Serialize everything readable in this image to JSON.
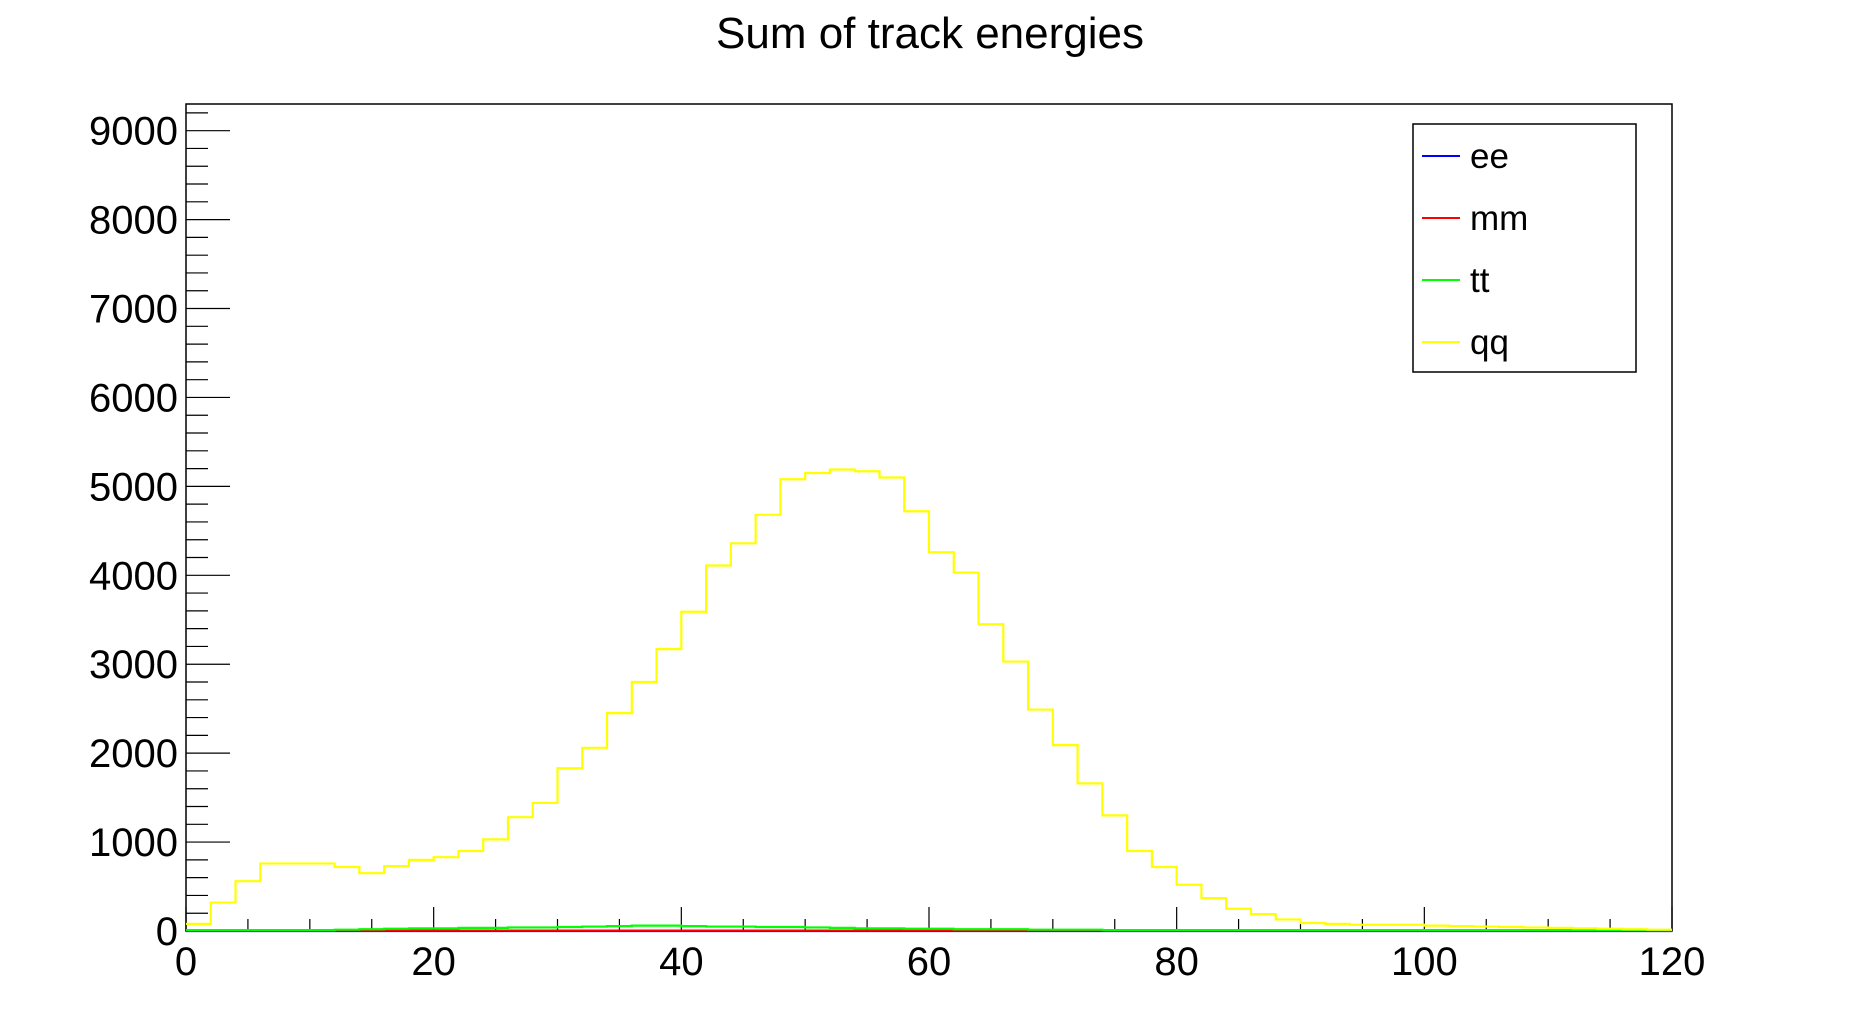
{
  "chart_data": {
    "type": "histogram",
    "title": "Sum of track energies",
    "xlabel": "",
    "ylabel": "",
    "xlim": [
      0,
      120
    ],
    "ylim": [
      0,
      9300
    ],
    "bin_width": 2,
    "x_ticks": [
      0,
      20,
      40,
      60,
      80,
      100,
      120
    ],
    "y_ticks": [
      0,
      1000,
      2000,
      3000,
      4000,
      5000,
      6000,
      7000,
      8000,
      9000
    ],
    "grid": false,
    "legend_position": "top-right",
    "series": [
      {
        "name": "ee",
        "color": "#0000ff",
        "values": [
          0,
          0,
          0,
          0,
          0,
          0,
          0,
          0,
          0,
          0,
          0,
          0,
          0,
          0,
          0,
          0,
          0,
          0,
          0,
          0,
          0,
          0,
          0,
          0,
          0,
          0,
          0,
          0,
          0,
          0,
          0,
          0,
          0,
          0,
          0,
          0,
          0,
          0,
          0,
          0,
          0,
          0,
          0,
          0,
          0,
          0,
          0,
          0,
          0,
          0,
          0,
          0,
          0,
          0,
          0,
          0,
          0,
          0,
          0,
          0
        ]
      },
      {
        "name": "mm",
        "color": "#ff0000",
        "values": [
          5,
          5,
          5,
          5,
          5,
          5,
          5,
          5,
          5,
          5,
          5,
          5,
          5,
          5,
          5,
          5,
          5,
          5,
          5,
          5,
          5,
          5,
          5,
          5,
          5,
          5,
          5,
          5,
          5,
          5,
          5,
          5,
          5,
          5,
          5,
          5,
          5,
          5,
          5,
          5,
          5,
          5,
          5,
          5,
          5,
          5,
          5,
          5,
          5,
          5,
          5,
          5,
          5,
          5,
          5,
          5,
          5,
          5,
          5,
          5
        ]
      },
      {
        "name": "tt",
        "color": "#00ff00",
        "values": [
          10,
          10,
          10,
          10,
          10,
          10,
          15,
          20,
          25,
          30,
          30,
          35,
          35,
          40,
          40,
          45,
          50,
          55,
          60,
          60,
          55,
          50,
          50,
          45,
          45,
          40,
          35,
          30,
          30,
          25,
          25,
          20,
          20,
          20,
          15,
          15,
          15,
          10,
          10,
          10,
          10,
          10,
          10,
          10,
          10,
          10,
          10,
          10,
          10,
          10,
          10,
          10,
          10,
          10,
          10,
          10,
          10,
          10,
          10,
          10
        ]
      },
      {
        "name": "qq",
        "color": "#ffff00",
        "values": [
          80,
          320,
          560,
          760,
          760,
          760,
          720,
          650,
          730,
          800,
          830,
          900,
          1030,
          1280,
          1440,
          1830,
          2060,
          2450,
          2800,
          3170,
          3590,
          4110,
          4360,
          4680,
          5080,
          5150,
          5190,
          5170,
          5100,
          4720,
          4260,
          4030,
          3450,
          3030,
          2490,
          2090,
          1660,
          1300,
          900,
          720,
          520,
          370,
          250,
          190,
          130,
          90,
          80,
          70,
          70,
          70,
          60,
          55,
          50,
          45,
          40,
          35,
          30,
          25,
          20,
          15
        ]
      }
    ]
  }
}
